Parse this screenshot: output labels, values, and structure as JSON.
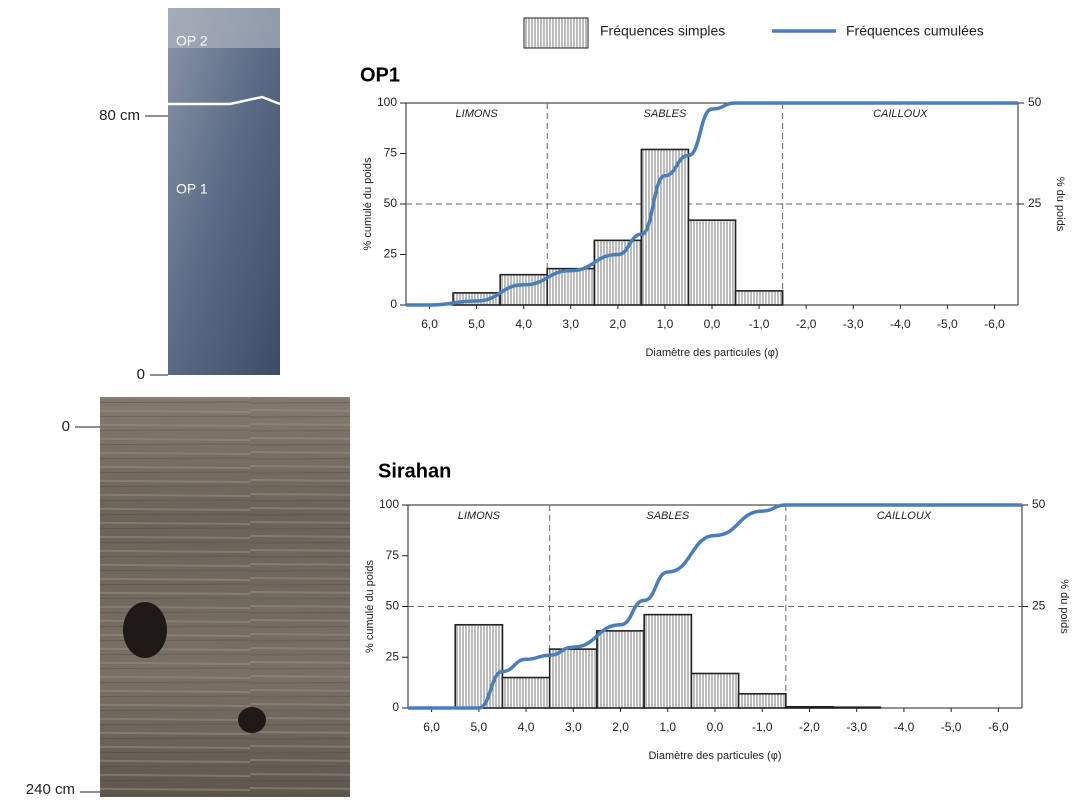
{
  "profiles": [
    {
      "labels": [
        "OP 2",
        "OP 1"
      ],
      "depth_labels": [
        "80 cm",
        "0"
      ]
    },
    {
      "depth_labels": [
        "0",
        "240 cm"
      ]
    }
  ],
  "chart_data": [
    {
      "type": "bar",
      "title": "OP1",
      "xlabel": "Diamètre des particules (φ)",
      "ylabel": "% cumulé du poids",
      "y2label": "% du poids",
      "xlim": [
        6.5,
        -6.5
      ],
      "xticks": [
        {
          "value": 6,
          "label": "6,0"
        },
        {
          "value": 5,
          "label": "5,0"
        },
        {
          "value": 4,
          "label": "4,0"
        },
        {
          "value": 3,
          "label": "3,0"
        },
        {
          "value": 2,
          "label": "2,0"
        },
        {
          "value": 1,
          "label": "1,0"
        },
        {
          "value": 0,
          "label": "0,0"
        },
        {
          "value": -1,
          "label": "-1,0"
        },
        {
          "value": -2,
          "label": "-2,0"
        },
        {
          "value": -3,
          "label": "-3,0"
        },
        {
          "value": -4,
          "label": "-4,0"
        },
        {
          "value": -5,
          "label": "-5,0"
        },
        {
          "value": -6,
          "label": "-6,0"
        }
      ],
      "ylim": [
        0,
        100
      ],
      "yticks": [
        0,
        25,
        50,
        75,
        100
      ],
      "y2lim": [
        0,
        50
      ],
      "y2ticks": [
        25,
        50
      ],
      "hline": 50,
      "zone_boundaries": [
        3.5,
        -1.5
      ],
      "zones": [
        "LIMONS",
        "SABLES",
        "CAILLOUX"
      ],
      "series": [
        {
          "name": "Fréquences simples",
          "type": "bar",
          "axis": "y2",
          "color": "#222222",
          "x": [
            5,
            4,
            3,
            2,
            1,
            0,
            -1
          ],
          "values": [
            3,
            7.5,
            9,
            16,
            38.5,
            21,
            3.5
          ]
        },
        {
          "name": "Fréquences cumulées",
          "type": "line",
          "color": "#4a7ebb",
          "x": [
            6.5,
            6,
            5,
            4,
            3,
            2,
            1.5,
            1,
            0.5,
            0,
            -0.5,
            -1,
            -2,
            -3,
            -4,
            -5,
            -6,
            -6.5
          ],
          "values": [
            0,
            0,
            2,
            10,
            17,
            25,
            35,
            64,
            74,
            97,
            100,
            100,
            100,
            100,
            100,
            100,
            100,
            100
          ]
        }
      ]
    },
    {
      "type": "bar",
      "title": "Sirahan",
      "xlabel": "Diamètre des particules (φ)",
      "ylabel": "% cumulé du poids",
      "y2label": "% du poids",
      "xlim": [
        6.5,
        -6.5
      ],
      "xticks": [
        {
          "value": 6,
          "label": "6,0"
        },
        {
          "value": 5,
          "label": "5,0"
        },
        {
          "value": 4,
          "label": "4,0"
        },
        {
          "value": 3,
          "label": "3,0"
        },
        {
          "value": 2,
          "label": "2,0"
        },
        {
          "value": 1,
          "label": "1,0"
        },
        {
          "value": 0,
          "label": "0,0"
        },
        {
          "value": -1,
          "label": "-1,0"
        },
        {
          "value": -2,
          "label": "-2,0"
        },
        {
          "value": -3,
          "label": "-3,0"
        },
        {
          "value": -4,
          "label": "-4,0"
        },
        {
          "value": -5,
          "label": "-5,0"
        },
        {
          "value": -6,
          "label": "-6,0"
        }
      ],
      "ylim": [
        0,
        100
      ],
      "yticks": [
        0,
        25,
        50,
        75,
        100
      ],
      "y2lim": [
        0,
        50
      ],
      "y2ticks": [
        25,
        50
      ],
      "hline": 50,
      "zone_boundaries": [
        3.5,
        -1.5
      ],
      "zones": [
        "LIMONS",
        "SABLES",
        "CAILLOUX"
      ],
      "series": [
        {
          "type": "bar",
          "axis": "y2",
          "color": "#222222",
          "x": [
            5,
            4,
            3,
            2,
            1,
            0,
            -1,
            -2,
            -3
          ],
          "values": [
            20.5,
            7.5,
            14.5,
            19,
            23,
            8.5,
            3.5,
            0.3,
            0.2
          ]
        },
        {
          "type": "line",
          "color": "#4a7ebb",
          "x": [
            6.5,
            5.5,
            5,
            4.5,
            4,
            3.5,
            3,
            2,
            1.5,
            1,
            0,
            -1,
            -1.5,
            -2,
            -3,
            -4,
            -5,
            -6,
            -6.5
          ],
          "values": [
            0,
            0,
            0,
            18,
            24,
            26,
            30,
            41,
            53,
            67,
            85,
            97,
            100,
            100,
            100,
            100,
            100,
            100,
            100
          ]
        }
      ]
    }
  ]
}
